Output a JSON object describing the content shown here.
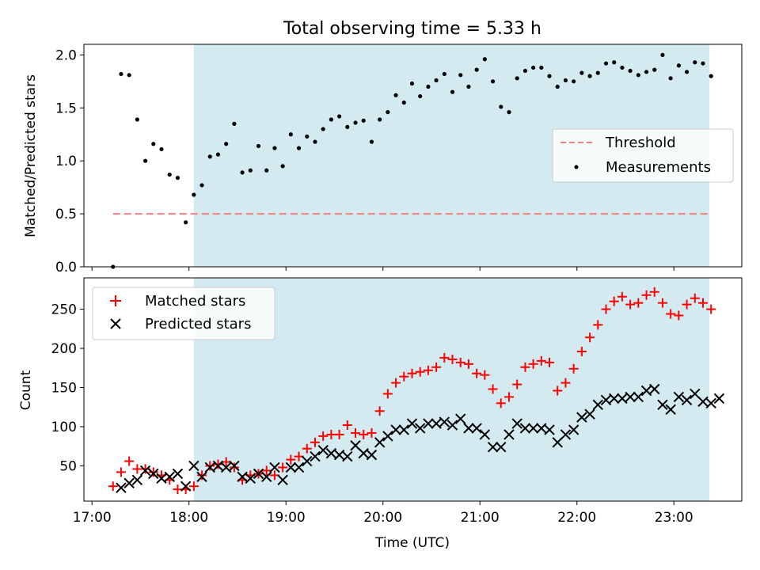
{
  "colors": {
    "shade": "#d3eaf0",
    "threshold": "#f08080",
    "matched": "#ff0000",
    "predicted": "#000000",
    "measurement": "#000000"
  },
  "chart_data": [
    {
      "type": "scatter",
      "title": "Total observing time = 5.33 h",
      "xlabel": "",
      "ylabel": "Matched/Predicted stars",
      "xlim": [
        "16:55",
        "23:42"
      ],
      "ylim": [
        0,
        2.1
      ],
      "yticks": [
        0.0,
        0.5,
        1.0,
        1.5,
        2.0
      ],
      "ytick_labels": [
        "0.0",
        "0.5",
        "1.0",
        "1.5",
        "2.0"
      ],
      "shaded_span": [
        "18:03",
        "23:22"
      ],
      "legend": {
        "position": "right",
        "entries": [
          "Threshold",
          "Measurements"
        ]
      },
      "threshold": {
        "name": "Threshold",
        "y": 0.5,
        "x": [
          "17:13",
          "23:22"
        ],
        "style": "dashed"
      },
      "series": [
        {
          "name": "Measurements",
          "points": [
            [
              "17:13",
              0.0
            ],
            [
              "17:18",
              1.82
            ],
            [
              "17:23",
              1.81
            ],
            [
              "17:28",
              1.39
            ],
            [
              "17:33",
              1.0
            ],
            [
              "17:38",
              1.16
            ],
            [
              "17:43",
              1.11
            ],
            [
              "17:48",
              0.87
            ],
            [
              "17:53",
              0.84
            ],
            [
              "17:58",
              0.42
            ],
            [
              "18:03",
              0.68
            ],
            [
              "18:08",
              0.77
            ],
            [
              "18:13",
              1.04
            ],
            [
              "18:18",
              1.06
            ],
            [
              "18:23",
              1.16
            ],
            [
              "18:28",
              1.35
            ],
            [
              "18:33",
              0.89
            ],
            [
              "18:38",
              0.91
            ],
            [
              "18:43",
              1.14
            ],
            [
              "18:48",
              0.91
            ],
            [
              "18:53",
              1.12
            ],
            [
              "18:58",
              0.95
            ],
            [
              "19:03",
              1.25
            ],
            [
              "19:08",
              1.12
            ],
            [
              "19:13",
              1.23
            ],
            [
              "19:18",
              1.18
            ],
            [
              "19:23",
              1.3
            ],
            [
              "19:28",
              1.39
            ],
            [
              "19:33",
              1.42
            ],
            [
              "19:38",
              1.32
            ],
            [
              "19:43",
              1.36
            ],
            [
              "19:48",
              1.38
            ],
            [
              "19:53",
              1.18
            ],
            [
              "19:58",
              1.39
            ],
            [
              "20:03",
              1.46
            ],
            [
              "20:08",
              1.62
            ],
            [
              "20:13",
              1.55
            ],
            [
              "20:18",
              1.73
            ],
            [
              "20:23",
              1.61
            ],
            [
              "20:28",
              1.7
            ],
            [
              "20:33",
              1.76
            ],
            [
              "20:38",
              1.82
            ],
            [
              "20:43",
              1.65
            ],
            [
              "20:48",
              1.81
            ],
            [
              "20:53",
              1.7
            ],
            [
              "20:58",
              1.86
            ],
            [
              "21:03",
              1.96
            ],
            [
              "21:08",
              1.75
            ],
            [
              "21:13",
              1.51
            ],
            [
              "21:18",
              1.46
            ],
            [
              "21:23",
              1.78
            ],
            [
              "21:28",
              1.85
            ],
            [
              "21:33",
              1.88
            ],
            [
              "21:38",
              1.88
            ],
            [
              "21:43",
              1.8
            ],
            [
              "21:48",
              1.7
            ],
            [
              "21:53",
              1.76
            ],
            [
              "21:58",
              1.75
            ],
            [
              "22:03",
              1.83
            ],
            [
              "22:08",
              1.8
            ],
            [
              "22:13",
              1.83
            ],
            [
              "22:18",
              1.92
            ],
            [
              "22:23",
              1.93
            ],
            [
              "22:28",
              1.88
            ],
            [
              "22:33",
              1.85
            ],
            [
              "22:38",
              1.81
            ],
            [
              "22:43",
              1.84
            ],
            [
              "22:48",
              1.86
            ],
            [
              "22:53",
              2.0
            ],
            [
              "22:58",
              1.78
            ],
            [
              "23:03",
              1.9
            ],
            [
              "23:08",
              1.84
            ],
            [
              "23:13",
              1.93
            ],
            [
              "23:18",
              1.92
            ],
            [
              "23:23",
              1.8
            ]
          ]
        }
      ]
    },
    {
      "type": "scatter",
      "title": "",
      "xlabel": "Time (UTC)",
      "ylabel": "Count",
      "xlim": [
        "16:55",
        "23:42"
      ],
      "ylim": [
        5,
        290
      ],
      "yticks": [
        50,
        100,
        150,
        200,
        250
      ],
      "xticks": [
        "17:00",
        "18:00",
        "19:00",
        "20:00",
        "21:00",
        "22:00",
        "23:00"
      ],
      "shaded_span": [
        "18:03",
        "23:22"
      ],
      "legend": {
        "position": "top-left",
        "entries": [
          "Matched stars",
          "Predicted stars"
        ]
      },
      "series": [
        {
          "name": "Matched stars",
          "marker": "+",
          "points": [
            [
              "17:13",
              24
            ],
            [
              "17:18",
              42
            ],
            [
              "17:23",
              56
            ],
            [
              "17:28",
              46
            ],
            [
              "17:33",
              46
            ],
            [
              "17:38",
              42
            ],
            [
              "17:43",
              38
            ],
            [
              "17:48",
              32
            ],
            [
              "17:53",
              20
            ],
            [
              "17:58",
              20
            ],
            [
              "18:03",
              24
            ],
            [
              "18:08",
              38
            ],
            [
              "18:13",
              50
            ],
            [
              "18:18",
              52
            ],
            [
              "18:23",
              55
            ],
            [
              "18:28",
              48
            ],
            [
              "18:33",
              32
            ],
            [
              "18:38",
              38
            ],
            [
              "18:43",
              40
            ],
            [
              "18:48",
              44
            ],
            [
              "18:53",
              38
            ],
            [
              "18:58",
              48
            ],
            [
              "19:03",
              58
            ],
            [
              "19:08",
              62
            ],
            [
              "19:13",
              72
            ],
            [
              "19:18",
              80
            ],
            [
              "19:23",
              88
            ],
            [
              "19:28",
              90
            ],
            [
              "19:33",
              90
            ],
            [
              "19:38",
              102
            ],
            [
              "19:43",
              92
            ],
            [
              "19:48",
              90
            ],
            [
              "19:53",
              92
            ],
            [
              "19:58",
              120
            ],
            [
              "20:03",
              142
            ],
            [
              "20:08",
              156
            ],
            [
              "20:13",
              164
            ],
            [
              "20:18",
              168
            ],
            [
              "20:23",
              170
            ],
            [
              "20:28",
              172
            ],
            [
              "20:33",
              176
            ],
            [
              "20:38",
              188
            ],
            [
              "20:43",
              186
            ],
            [
              "20:48",
              182
            ],
            [
              "20:53",
              180
            ],
            [
              "20:58",
              168
            ],
            [
              "21:03",
              166
            ],
            [
              "21:08",
              148
            ],
            [
              "21:13",
              130
            ],
            [
              "21:18",
              138
            ],
            [
              "21:23",
              154
            ],
            [
              "21:28",
              176
            ],
            [
              "21:33",
              180
            ],
            [
              "21:38",
              184
            ],
            [
              "21:43",
              182
            ],
            [
              "21:48",
              146
            ],
            [
              "21:53",
              156
            ],
            [
              "21:58",
              174
            ],
            [
              "22:03",
              196
            ],
            [
              "22:08",
              214
            ],
            [
              "22:13",
              230
            ],
            [
              "22:18",
              250
            ],
            [
              "22:23",
              260
            ],
            [
              "22:28",
              266
            ],
            [
              "22:33",
              256
            ],
            [
              "22:38",
              258
            ],
            [
              "22:43",
              268
            ],
            [
              "22:48",
              272
            ],
            [
              "22:53",
              258
            ],
            [
              "22:58",
              244
            ],
            [
              "23:03",
              242
            ],
            [
              "23:08",
              256
            ],
            [
              "23:13",
              264
            ],
            [
              "23:18",
              258
            ],
            [
              "23:23",
              250
            ]
          ]
        },
        {
          "name": "Predicted stars",
          "marker": "x",
          "points": [
            [
              "17:18",
              22
            ],
            [
              "17:23",
              28
            ],
            [
              "17:28",
              32
            ],
            [
              "17:33",
              44
            ],
            [
              "17:38",
              40
            ],
            [
              "17:43",
              34
            ],
            [
              "17:48",
              36
            ],
            [
              "17:53",
              40
            ],
            [
              "17:58",
              24
            ],
            [
              "18:03",
              50
            ],
            [
              "18:08",
              36
            ],
            [
              "18:13",
              48
            ],
            [
              "18:18",
              50
            ],
            [
              "18:23",
              48
            ],
            [
              "18:28",
              50
            ],
            [
              "18:33",
              36
            ],
            [
              "18:38",
              34
            ],
            [
              "18:43",
              40
            ],
            [
              "18:48",
              36
            ],
            [
              "18:53",
              48
            ],
            [
              "18:58",
              32
            ],
            [
              "19:03",
              48
            ],
            [
              "19:08",
              48
            ],
            [
              "19:13",
              56
            ],
            [
              "19:18",
              62
            ],
            [
              "19:23",
              70
            ],
            [
              "19:28",
              66
            ],
            [
              "19:33",
              64
            ],
            [
              "19:38",
              62
            ],
            [
              "19:43",
              76
            ],
            [
              "19:48",
              66
            ],
            [
              "19:53",
              64
            ],
            [
              "19:58",
              80
            ],
            [
              "20:03",
              88
            ],
            [
              "20:08",
              96
            ],
            [
              "20:13",
              96
            ],
            [
              "20:18",
              104
            ],
            [
              "20:23",
              98
            ],
            [
              "20:28",
              104
            ],
            [
              "20:33",
              104
            ],
            [
              "20:38",
              106
            ],
            [
              "20:43",
              102
            ],
            [
              "20:48",
              110
            ],
            [
              "20:53",
              98
            ],
            [
              "20:58",
              98
            ],
            [
              "21:03",
              90
            ],
            [
              "21:08",
              74
            ],
            [
              "21:13",
              74
            ],
            [
              "21:18",
              90
            ],
            [
              "21:23",
              104
            ],
            [
              "21:28",
              98
            ],
            [
              "21:33",
              98
            ],
            [
              "21:38",
              98
            ],
            [
              "21:43",
              96
            ],
            [
              "21:48",
              80
            ],
            [
              "21:53",
              90
            ],
            [
              "21:58",
              96
            ],
            [
              "22:03",
              112
            ],
            [
              "22:08",
              116
            ],
            [
              "22:13",
              128
            ],
            [
              "22:18",
              134
            ],
            [
              "22:23",
              136
            ],
            [
              "22:28",
              136
            ],
            [
              "22:33",
              138
            ],
            [
              "22:38",
              138
            ],
            [
              "22:43",
              146
            ],
            [
              "22:48",
              148
            ],
            [
              "22:53",
              128
            ],
            [
              "22:58",
              122
            ],
            [
              "23:03",
              138
            ],
            [
              "23:08",
              134
            ],
            [
              "23:13",
              142
            ],
            [
              "23:18",
              132
            ],
            [
              "23:23",
              130
            ],
            [
              "23:28",
              136
            ]
          ]
        }
      ]
    }
  ]
}
